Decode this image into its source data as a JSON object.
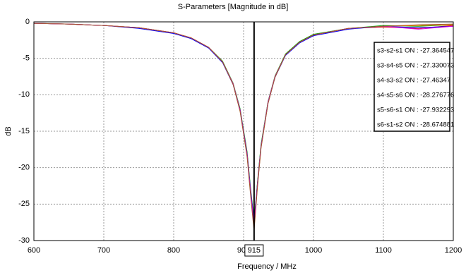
{
  "chart_data": {
    "type": "line",
    "title": "S-Parameters [Magnitude in dB]",
    "x_label": "Frequency / MHz",
    "y_label": "dB",
    "x": [
      600,
      650,
      700,
      750,
      800,
      825,
      850,
      870,
      885,
      895,
      905,
      910,
      915,
      920,
      925,
      935,
      945,
      960,
      980,
      1000,
      1050,
      1100,
      1150,
      1200
    ],
    "series": [
      {
        "name": "s3-s2-s1 ON : -27.364547",
        "color": "#e00000",
        "values": [
          -0.2,
          -0.3,
          -0.5,
          -0.8,
          -1.5,
          -2.2,
          -3.5,
          -5.5,
          -8.5,
          -12,
          -18,
          -23,
          -27.4,
          -22,
          -17,
          -11,
          -7.5,
          -4.5,
          -2.8,
          -1.8,
          -0.9,
          -0.7,
          -0.9,
          -0.5
        ]
      },
      {
        "name": "s3-s4-s5 ON : -27.330073",
        "color": "#00a000",
        "values": [
          -0.2,
          -0.3,
          -0.5,
          -0.8,
          -1.5,
          -2.2,
          -3.5,
          -5.4,
          -8.4,
          -11.9,
          -17.8,
          -22.8,
          -27.3,
          -21.8,
          -16.8,
          -10.9,
          -7.4,
          -4.4,
          -2.7,
          -1.7,
          -0.9,
          -0.5,
          -0.6,
          -0.4
        ]
      },
      {
        "name": "s4-s3-s2 ON : -27.46347",
        "color": "#0000ff",
        "values": [
          -0.2,
          -0.3,
          -0.5,
          -0.9,
          -1.6,
          -2.3,
          -3.6,
          -5.6,
          -8.6,
          -12.1,
          -18.1,
          -23.1,
          -27.5,
          -22.1,
          -17.1,
          -11.1,
          -7.6,
          -4.6,
          -2.9,
          -1.9,
          -1.0,
          -0.6,
          -0.8,
          -0.6
        ]
      },
      {
        "name": "s4-s5-s6 ON : -28.276776",
        "color": "#ff8c00",
        "values": [
          -0.2,
          -0.3,
          -0.5,
          -0.8,
          -1.5,
          -2.2,
          -3.5,
          -5.5,
          -8.5,
          -12.2,
          -18.3,
          -23.5,
          -28.3,
          -22.3,
          -17.2,
          -11.1,
          -7.5,
          -4.5,
          -2.8,
          -1.8,
          -0.9,
          -0.6,
          -0.5,
          -0.4
        ]
      },
      {
        "name": "s5-s6-s1 ON : -27.932293",
        "color": "#e000e0",
        "values": [
          -0.2,
          -0.3,
          -0.5,
          -0.8,
          -1.5,
          -2.2,
          -3.5,
          -5.5,
          -8.5,
          -12.1,
          -18.2,
          -23.3,
          -27.9,
          -22.2,
          -17.1,
          -11.0,
          -7.5,
          -4.5,
          -2.8,
          -1.8,
          -0.9,
          -0.6,
          -1.0,
          -0.6
        ]
      },
      {
        "name": "s6-s1-s2 ON : -28.674881",
        "color": "#a0522d",
        "values": [
          -0.2,
          -0.3,
          -0.5,
          -0.8,
          -1.5,
          -2.2,
          -3.5,
          -5.5,
          -8.6,
          -12.3,
          -18.5,
          -23.8,
          -28.7,
          -22.5,
          -17.3,
          -11.2,
          -7.6,
          -4.5,
          -2.8,
          -1.8,
          -0.9,
          -0.6,
          -0.4,
          -0.3
        ]
      }
    ],
    "marker_x": 915,
    "xlim": [
      600,
      1200
    ],
    "xticks": [
      600,
      700,
      800,
      900,
      1000,
      1100,
      1200
    ],
    "ylim": [
      -30,
      0
    ],
    "yticks": [
      0,
      -5,
      -10,
      -15,
      -20,
      -25,
      -30
    ],
    "grid": true
  }
}
